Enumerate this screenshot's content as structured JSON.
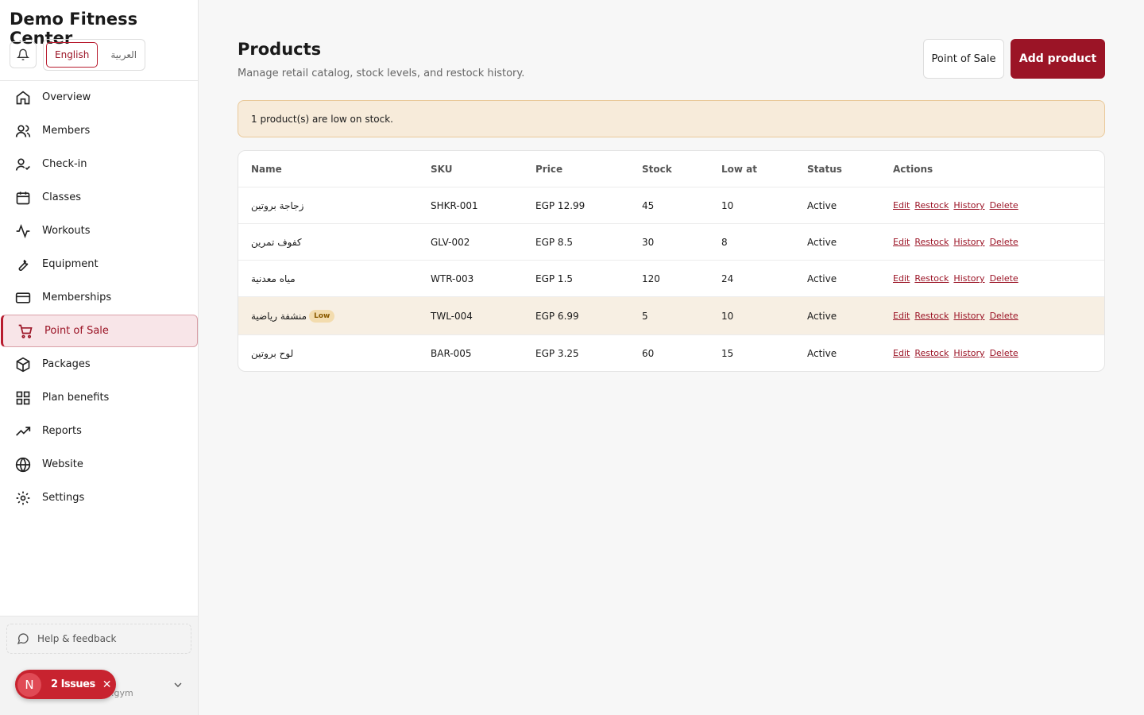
{
  "sidebar": {
    "brand": "Demo Fitness Center",
    "languages": [
      {
        "label": "English",
        "active": true
      },
      {
        "label": "العربية",
        "active": false
      }
    ],
    "nav": [
      {
        "label": "Overview",
        "icon": "home"
      },
      {
        "label": "Members",
        "icon": "users"
      },
      {
        "label": "Check-in",
        "icon": "check"
      },
      {
        "label": "Classes",
        "icon": "calendar"
      },
      {
        "label": "Workouts",
        "icon": "pulse"
      },
      {
        "label": "Equipment",
        "icon": "wrench"
      },
      {
        "label": "Memberships",
        "icon": "card"
      },
      {
        "label": "Point of Sale",
        "icon": "cart",
        "active": true
      },
      {
        "label": "Packages",
        "icon": "box"
      },
      {
        "label": "Plan benefits",
        "icon": "grid"
      },
      {
        "label": "Reports",
        "icon": "trend"
      },
      {
        "label": "Website",
        "icon": "globe"
      },
      {
        "label": "Settings",
        "icon": "gear"
      }
    ],
    "help": "Help & feedback",
    "account_fragment": ".gym"
  },
  "issues_badge": {
    "initial": "N",
    "label": "2 Issues"
  },
  "header": {
    "title": "Products",
    "subtitle": "Manage retail catalog, stock levels, and restock history.",
    "buttons": [
      "Point of Sale",
      "Add product"
    ]
  },
  "alert": "1 product(s) are low on stock.",
  "table": {
    "columns": [
      "Name",
      "SKU",
      "Price",
      "Stock",
      "Low at",
      "Status",
      "Actions"
    ],
    "rows": [
      [
        "زجاجة بروتين",
        "SHKR-001",
        "EGP 12.99",
        45,
        10,
        "Active"
      ],
      [
        "كفوف تمرين",
        "GLV-002",
        "EGP 8.5",
        30,
        8,
        "Active"
      ],
      [
        "مياه معدنية",
        "WTR-003",
        "EGP 1.5",
        120,
        24,
        "Active"
      ],
      [
        "منشفة رياضية",
        "TWL-004",
        "EGP 6.99",
        5,
        10,
        "Active"
      ],
      [
        "لوح بروتين",
        "BAR-005",
        "EGP 3.25",
        60,
        15,
        "Active"
      ]
    ],
    "low_badge": "Low",
    "actions": [
      "Edit",
      "Restock",
      "History",
      "Delete"
    ]
  }
}
